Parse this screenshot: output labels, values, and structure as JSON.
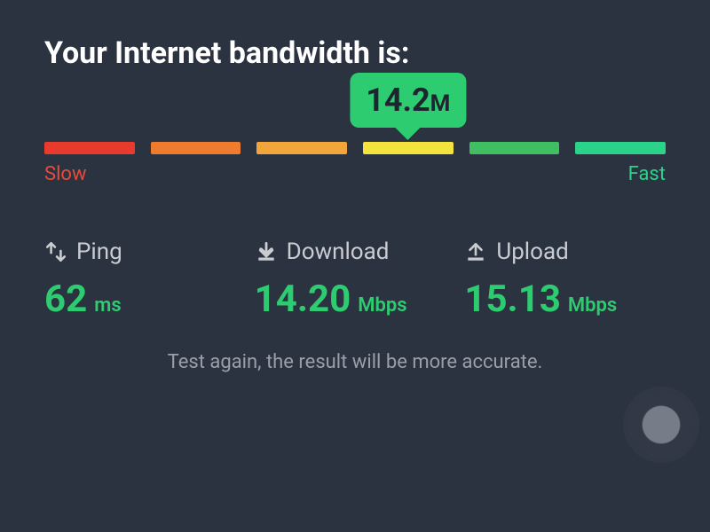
{
  "title": "Your Internet bandwidth is:",
  "callout": {
    "value": "14.2",
    "unit": "M",
    "segment_index": 3,
    "bg_color": "#2ecc71",
    "text_color": "#1e2530",
    "value_fontsize": 36,
    "unit_fontsize": 26
  },
  "gauge": {
    "segments": [
      {
        "color": "#e83b2e"
      },
      {
        "color": "#ef7b2f"
      },
      {
        "color": "#f2a53a"
      },
      {
        "color": "#f4e23d"
      },
      {
        "color": "#3fbf62"
      },
      {
        "color": "#2bd28a"
      }
    ],
    "segment_height": 14,
    "gap": 18,
    "label_slow": "Slow",
    "label_slow_color": "#e64b3c",
    "label_fast": "Fast",
    "label_fast_color": "#2bd28a",
    "label_fontsize": 22
  },
  "metrics": {
    "ping": {
      "label": "Ping",
      "value": "62",
      "unit": "ms",
      "color": "#2ecc71"
    },
    "download": {
      "label": "Download",
      "value": "14.20",
      "unit": "Mbps",
      "color": "#2ecc71"
    },
    "upload": {
      "label": "Upload",
      "value": "15.13",
      "unit": "Mbps",
      "color": "#2ecc71"
    },
    "label_color": "#c9ccd1",
    "label_fontsize": 26,
    "value_fontsize": 42,
    "unit_fontsize": 22
  },
  "footer_hint": "Test again, the result will be more accurate.",
  "footer_color": "#9aa0a8",
  "background_color": "#2b3240"
}
